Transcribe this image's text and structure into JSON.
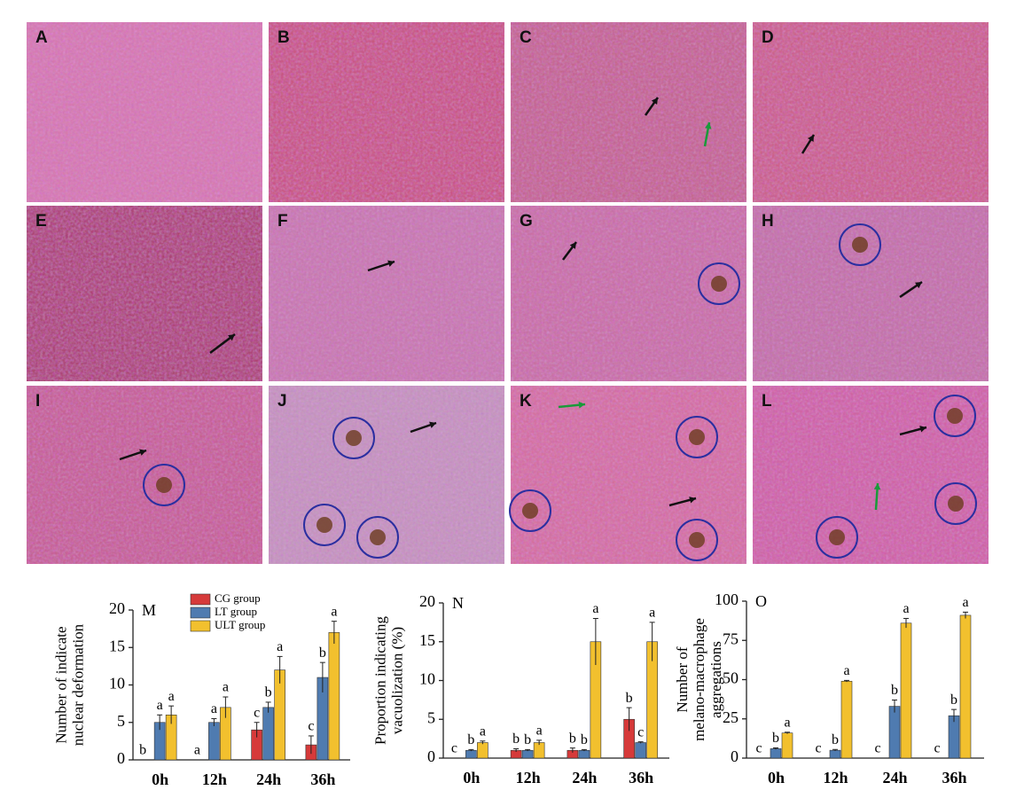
{
  "image_panels": [
    "A",
    "B",
    "C",
    "D",
    "E",
    "F",
    "G",
    "H",
    "I",
    "J",
    "K",
    "L"
  ],
  "chart_data": [
    {
      "type": "bar",
      "panel": "M",
      "ylabel": [
        "Number of  indicate",
        "nuclear deformation"
      ],
      "categories": [
        "0h",
        "12h",
        "24h",
        "36h"
      ],
      "ylim": [
        0,
        20
      ],
      "yticks": [
        0,
        5,
        10,
        15,
        20
      ],
      "series": [
        {
          "name": "CG group",
          "color": "#d63a3a",
          "values": [
            0,
            0,
            4,
            2
          ],
          "errors": [
            0,
            0,
            1,
            1.2
          ],
          "letters": [
            "b",
            "a",
            "c",
            "c"
          ]
        },
        {
          "name": "LT group",
          "color": "#4f7bb0",
          "values": [
            5,
            5,
            7,
            11
          ],
          "errors": [
            1,
            0.5,
            0.7,
            2
          ],
          "letters": [
            "a",
            "a",
            "b",
            "b"
          ]
        },
        {
          "name": "ULT group",
          "color": "#f2c02e",
          "values": [
            6,
            7,
            12,
            17
          ],
          "errors": [
            1.2,
            1.4,
            1.8,
            1.5
          ],
          "letters": [
            "a",
            "a",
            "a",
            "a"
          ]
        }
      ]
    },
    {
      "type": "bar",
      "panel": "N",
      "ylabel": [
        "Proportion indicating",
        "vacuolization (%)"
      ],
      "categories": [
        "0h",
        "12h",
        "24h",
        "36h"
      ],
      "ylim": [
        0,
        20
      ],
      "yticks": [
        0,
        5,
        10,
        15,
        20
      ],
      "series": [
        {
          "color": "#d63a3a",
          "values": [
            0,
            1,
            1,
            5
          ],
          "errors": [
            0,
            0.2,
            0.3,
            1.5
          ],
          "letters": [
            "c",
            "b",
            "b",
            "b"
          ]
        },
        {
          "color": "#4f7bb0",
          "values": [
            1,
            1,
            1,
            2
          ],
          "errors": [
            0.1,
            0.1,
            0.1,
            0.1
          ],
          "letters": [
            "b",
            "b",
            "b",
            "c"
          ]
        },
        {
          "color": "#f2c02e",
          "values": [
            2,
            2,
            15,
            15
          ],
          "errors": [
            0.2,
            0.3,
            3,
            2.5
          ],
          "letters": [
            "a",
            "a",
            "a",
            "a"
          ]
        }
      ]
    },
    {
      "type": "bar",
      "panel": "O",
      "ylabel": [
        "Number of",
        "melano-macrophage",
        "aggregations"
      ],
      "categories": [
        "0h",
        "12h",
        "24h",
        "36h"
      ],
      "ylim": [
        0,
        100
      ],
      "yticks": [
        0,
        25,
        50,
        75,
        100
      ],
      "series": [
        {
          "color": "#d63a3a",
          "values": [
            0,
            0,
            0,
            0
          ],
          "errors": [
            0,
            0,
            0,
            0
          ],
          "letters": [
            "c",
            "c",
            "c",
            "c"
          ]
        },
        {
          "color": "#4f7bb0",
          "values": [
            6,
            5,
            33,
            27
          ],
          "errors": [
            0.5,
            0.5,
            4,
            4
          ],
          "letters": [
            "b",
            "b",
            "b",
            "b"
          ]
        },
        {
          "color": "#f2c02e",
          "values": [
            16,
            49,
            86,
            91
          ],
          "errors": [
            0.5,
            0.5,
            3,
            2
          ],
          "letters": [
            "a",
            "a",
            "a",
            "a"
          ]
        }
      ]
    }
  ]
}
